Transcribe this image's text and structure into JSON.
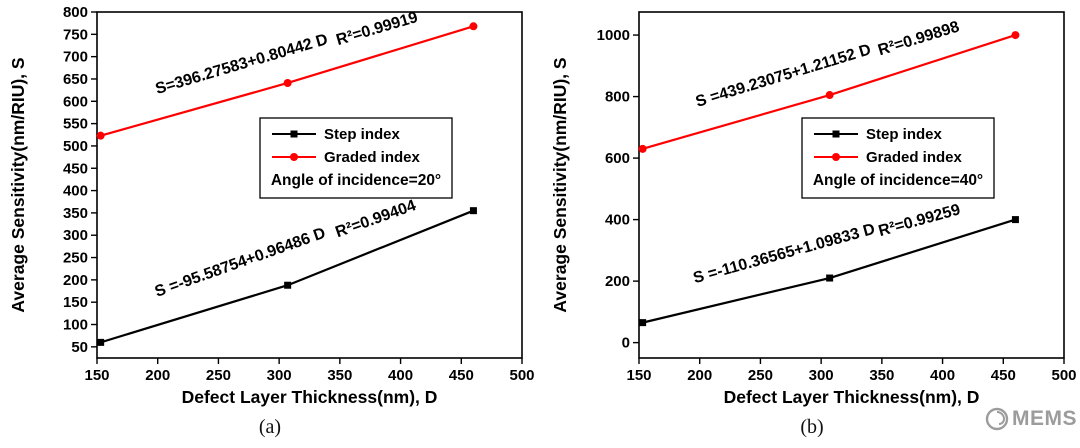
{
  "watermark": {
    "text": "MEMS",
    "icon": "swirl-logo-icon",
    "color": "#9c9c9c"
  },
  "chart_data": [
    {
      "type": "line",
      "caption": "(a)",
      "xlabel": "Defect Layer Thickness(nm), D",
      "ylabel": "Average Sensitivity(nm/RIU), S",
      "xlim": [
        150,
        500
      ],
      "ylim": [
        25,
        800
      ],
      "xticks": [
        150,
        200,
        250,
        300,
        350,
        400,
        450,
        500
      ],
      "yticks": [
        50,
        100,
        150,
        200,
        250,
        300,
        350,
        400,
        450,
        500,
        550,
        600,
        650,
        700,
        750,
        800
      ],
      "x": [
        153,
        307,
        460
      ],
      "series": [
        {
          "name": "Step index",
          "color": "#000000",
          "marker": "square",
          "values": [
            60,
            188,
            355
          ],
          "fit_equation": "S =-95.58754+0.96486 D",
          "r_squared": "R²=0.99404"
        },
        {
          "name": "Graded index",
          "color": "#ff0000",
          "marker": "circle",
          "values": [
            523,
            641,
            768
          ],
          "fit_equation": "S=396.27583+0.80442 D",
          "r_squared": "R²=0.99919"
        }
      ],
      "legend_note": "Angle of incidence=20°",
      "legend_position": "center",
      "grid": false
    },
    {
      "type": "line",
      "caption": "(b)",
      "xlabel": "Defect Layer Thickness(nm), D",
      "ylabel": "Average Sensitivity(nm/RIU), S",
      "xlim": [
        150,
        500
      ],
      "ylim": [
        -50,
        1075
      ],
      "xticks": [
        150,
        200,
        250,
        300,
        350,
        400,
        450,
        500
      ],
      "yticks": [
        0,
        200,
        400,
        600,
        800,
        1000
      ],
      "x": [
        153,
        307,
        460
      ],
      "series": [
        {
          "name": "Step index",
          "color": "#000000",
          "marker": "square",
          "values": [
            65,
            210,
            400
          ],
          "fit_equation": "S =-110.36565+1.09833 D",
          "r_squared": "R²=0.99259"
        },
        {
          "name": "Graded index",
          "color": "#ff0000",
          "marker": "circle",
          "values": [
            630,
            805,
            1000
          ],
          "fit_equation": "S =439.23075+1.21152 D",
          "r_squared": "R²=0.99898"
        }
      ],
      "legend_note": "Angle of incidence=40°",
      "legend_position": "center",
      "grid": false
    }
  ]
}
